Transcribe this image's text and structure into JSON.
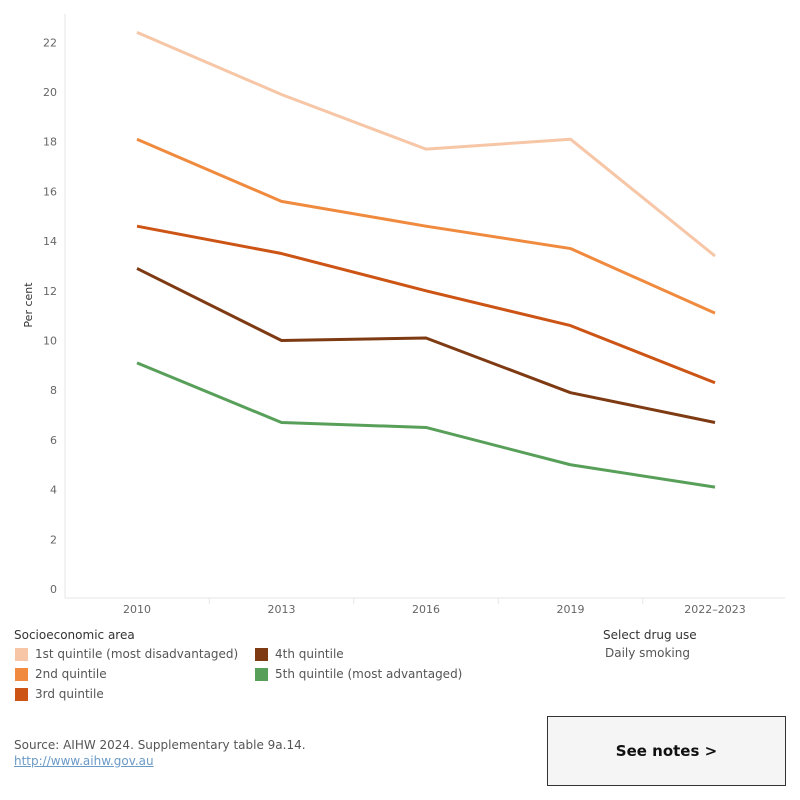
{
  "chart_data": {
    "type": "line",
    "ylabel": "Per cent",
    "categories": [
      "2010",
      "2013",
      "2016",
      "2019",
      "2022–2023"
    ],
    "ylim": [
      0,
      23
    ],
    "yticks": [
      0,
      2,
      4,
      6,
      8,
      10,
      12,
      14,
      16,
      18,
      20,
      22
    ],
    "grid": false,
    "series": [
      {
        "name": "1st quintile (most disadvantaged)",
        "color": "#f6c6a6",
        "values": [
          22.4,
          19.9,
          17.7,
          18.1,
          13.4
        ]
      },
      {
        "name": "2nd quintile",
        "color": "#f08a3e",
        "values": [
          18.1,
          15.6,
          14.6,
          13.7,
          11.1
        ]
      },
      {
        "name": "3rd quintile",
        "color": "#cc5516",
        "values": [
          14.6,
          13.5,
          12.0,
          10.6,
          8.3
        ]
      },
      {
        "name": "4th quintile",
        "color": "#7e3a12",
        "values": [
          12.9,
          10.0,
          10.1,
          7.9,
          6.7
        ]
      },
      {
        "name": "5th quintile (most advantaged)",
        "color": "#58a05a",
        "values": [
          9.1,
          6.7,
          6.5,
          5.0,
          4.1
        ]
      }
    ]
  },
  "legend": {
    "title": "Socioeconomic area",
    "items": [
      {
        "label": "1st quintile (most disadvantaged)",
        "color": "#f6c6a6"
      },
      {
        "label": "2nd quintile",
        "color": "#f08a3e"
      },
      {
        "label": "3rd quintile",
        "color": "#cc5516"
      },
      {
        "label": "4th quintile",
        "color": "#7e3a12"
      },
      {
        "label": "5th quintile (most advantaged)",
        "color": "#58a05a"
      }
    ]
  },
  "filter": {
    "title": "Select drug use",
    "value": "Daily smoking"
  },
  "footer": {
    "source": "Source: AIHW 2024. Supplementary table 9a.14.",
    "link": "http://www.aihw.gov.au",
    "notes_button": "See notes >"
  }
}
